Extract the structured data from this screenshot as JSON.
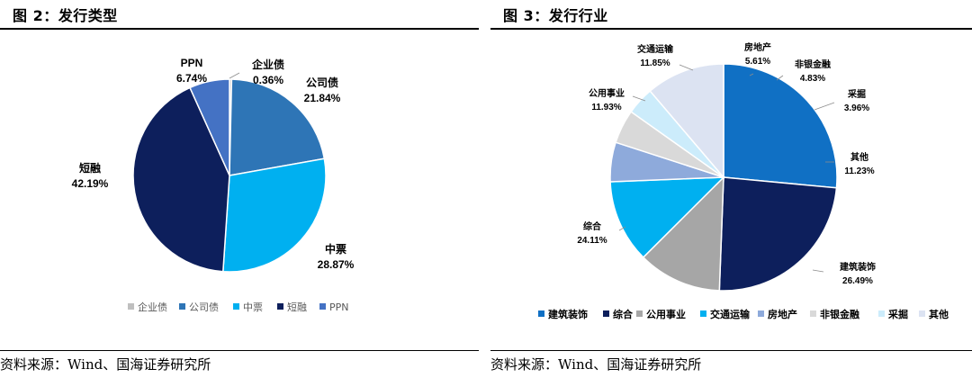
{
  "figures": [
    {
      "title": "图 2：发行类型",
      "source": "资料来源：Wind、国海证券研究所",
      "chart_data": {
        "type": "pie",
        "categories": [
          "企业债",
          "公司债",
          "中票",
          "短融",
          "PPN"
        ],
        "values": [
          0.36,
          21.84,
          28.87,
          42.19,
          6.74
        ],
        "value_labels": [
          "0.36%",
          "21.84%",
          "28.87%",
          "42.19%",
          "6.74%"
        ],
        "colors": [
          "#bfbfbf",
          "#2e75b6",
          "#00b0f0",
          "#0d1f5c",
          "#4472c4"
        ],
        "start": "12 o'clock",
        "direction": "clockwise",
        "legend_position": "bottom"
      }
    },
    {
      "title": "图 3：发行行业",
      "source": "资料来源：Wind、国海证券研究所",
      "chart_data": {
        "type": "pie",
        "categories": [
          "建筑装饰",
          "综合",
          "公用事业",
          "交通运输",
          "房地产",
          "非银金融",
          "采掘",
          "其他"
        ],
        "values": [
          26.49,
          24.11,
          11.93,
          11.85,
          5.61,
          4.83,
          3.96,
          11.23
        ],
        "value_labels": [
          "26.49%",
          "24.11%",
          "11.93%",
          "11.85%",
          "5.61%",
          "4.83%",
          "3.96%",
          "11.23%"
        ],
        "colors": [
          "#1070c4",
          "#0d1f5c",
          "#a6a6a6",
          "#00b0f0",
          "#8eaadb",
          "#d9d9d9",
          "#ccecfb",
          "#dce3f2"
        ],
        "start": "12 o'clock",
        "direction": "clockwise",
        "legend_position": "bottom"
      }
    }
  ]
}
